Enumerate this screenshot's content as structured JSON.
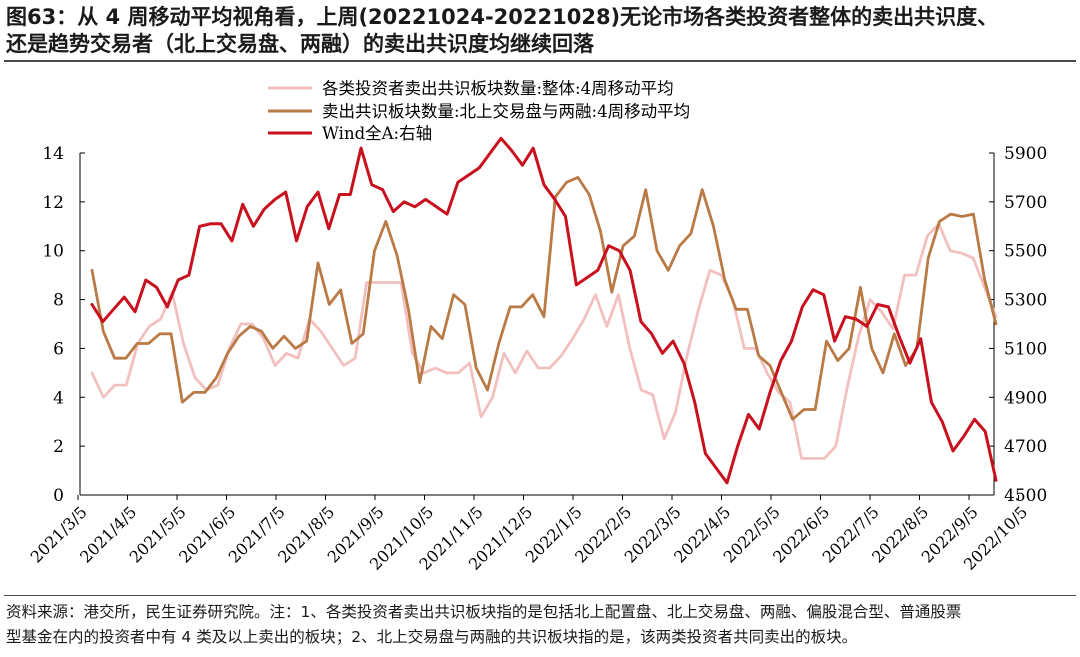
{
  "title": {
    "line1": "图63：从 4 周移动平均视角看，上周(20221024-20221028)无论市场各类投资者整体的卖出共识度、",
    "line2": "还是趋势交易者（北上交易盘、两融）的卖出共识度均继续回落"
  },
  "footer": {
    "line1": "资料来源：港交所，民生证券研究院。注：1、各类投资者卖出共识板块指的是包括北上配置盘、北上交易盘、两融、偏股混合型、普通股票",
    "line2": "型基金在内的投资者中有 4 类及以上卖出的板块；2、北上交易盘与两融的共识板块指的是，该两类投资者共同卖出的板块。"
  },
  "chart_data": {
    "type": "line",
    "title": "",
    "x_ticks": [
      "2021/3/5",
      "2021/4/5",
      "2021/5/5",
      "2021/6/5",
      "2021/7/5",
      "2021/8/5",
      "2021/9/5",
      "2021/10/5",
      "2021/11/5",
      "2021/12/5",
      "2022/1/5",
      "2022/2/5",
      "2022/3/5",
      "2022/4/5",
      "2022/5/5",
      "2022/6/5",
      "2022/7/5",
      "2022/8/5",
      "2022/9/5",
      "2022/10/5"
    ],
    "y_left": {
      "range": [
        0,
        14
      ],
      "ticks": [
        "0",
        "2",
        "4",
        "6",
        "8",
        "10",
        "12",
        "14"
      ]
    },
    "y_right": {
      "range": [
        4500,
        5900
      ],
      "ticks": [
        "4500",
        "4700",
        "4900",
        "5100",
        "5300",
        "5500",
        "5700",
        "5900"
      ]
    },
    "legend_position": "top-center",
    "grid": false,
    "series": [
      {
        "name": "各类投资者卖出共识板块数量:整体:4周移动平均",
        "axis": "left",
        "color": "#f2c0bf",
        "values": [
          5.0,
          4.0,
          4.5,
          4.5,
          6.2,
          6.9,
          7.2,
          8.3,
          6.2,
          4.8,
          4.3,
          4.5,
          6.0,
          7.0,
          7.0,
          6.4,
          5.3,
          5.8,
          5.6,
          7.2,
          6.7,
          6.0,
          5.3,
          5.6,
          8.7,
          8.7,
          8.7,
          8.7,
          5.8,
          5.0,
          5.2,
          5.0,
          5.0,
          5.4,
          3.2,
          4.0,
          5.8,
          5.0,
          5.9,
          5.2,
          5.2,
          5.7,
          6.4,
          7.2,
          8.2,
          6.9,
          8.2,
          6.0,
          4.3,
          4.1,
          2.3,
          3.4,
          5.7,
          7.6,
          9.2,
          9.0,
          8.0,
          6.0,
          6.0,
          5.0,
          4.2,
          3.8,
          1.5,
          1.5,
          1.5,
          2.0,
          4.4,
          6.5,
          8.0,
          7.5,
          6.8,
          9.0,
          9.0,
          10.6,
          11.1,
          10.0,
          9.9,
          9.7,
          8.5,
          7.3
        ]
      },
      {
        "name": "卖出共识板块数量:北上交易盘与两融:4周移动平均",
        "axis": "left",
        "color": "#b97a45",
        "values": [
          9.2,
          6.7,
          5.6,
          5.6,
          6.2,
          6.2,
          6.6,
          6.6,
          3.8,
          4.2,
          4.2,
          4.8,
          5.8,
          6.5,
          6.9,
          6.7,
          6.0,
          6.5,
          6.0,
          6.3,
          9.5,
          7.8,
          8.4,
          6.2,
          6.6,
          10.0,
          11.2,
          9.8,
          7.6,
          4.6,
          6.9,
          6.4,
          8.2,
          7.8,
          5.2,
          4.3,
          6.2,
          7.7,
          7.7,
          8.2,
          7.3,
          12.2,
          12.8,
          13.0,
          12.3,
          10.8,
          8.3,
          10.2,
          10.6,
          12.5,
          10.0,
          9.2,
          10.2,
          10.7,
          12.5,
          11.0,
          8.8,
          7.6,
          7.6,
          5.7,
          5.3,
          4.2,
          3.1,
          3.5,
          3.5,
          6.3,
          5.5,
          6.0,
          8.5,
          6.0,
          5.0,
          6.6,
          5.3,
          6.0,
          9.7,
          11.2,
          11.5,
          11.4,
          11.5,
          8.8,
          7.0
        ]
      },
      {
        "name": "Wind全A:右轴",
        "axis": "right",
        "color": "#c8101e",
        "values": [
          5280,
          5210,
          5260,
          5310,
          5250,
          5380,
          5350,
          5270,
          5380,
          5400,
          5600,
          5610,
          5610,
          5540,
          5690,
          5600,
          5670,
          5710,
          5740,
          5540,
          5680,
          5740,
          5590,
          5730,
          5730,
          5920,
          5770,
          5750,
          5660,
          5700,
          5680,
          5710,
          5680,
          5650,
          5780,
          5810,
          5840,
          5900,
          5960,
          5910,
          5850,
          5920,
          5770,
          5710,
          5640,
          5360,
          5390,
          5420,
          5520,
          5500,
          5420,
          5210,
          5160,
          5080,
          5130,
          5040,
          4880,
          4670,
          4610,
          4550,
          4700,
          4830,
          4770,
          4920,
          5050,
          5130,
          5270,
          5340,
          5320,
          5130,
          5230,
          5220,
          5190,
          5280,
          5270,
          5150,
          5040,
          5140,
          4880,
          4800,
          4680,
          4740,
          4810,
          4760,
          4560
        ]
      }
    ]
  }
}
